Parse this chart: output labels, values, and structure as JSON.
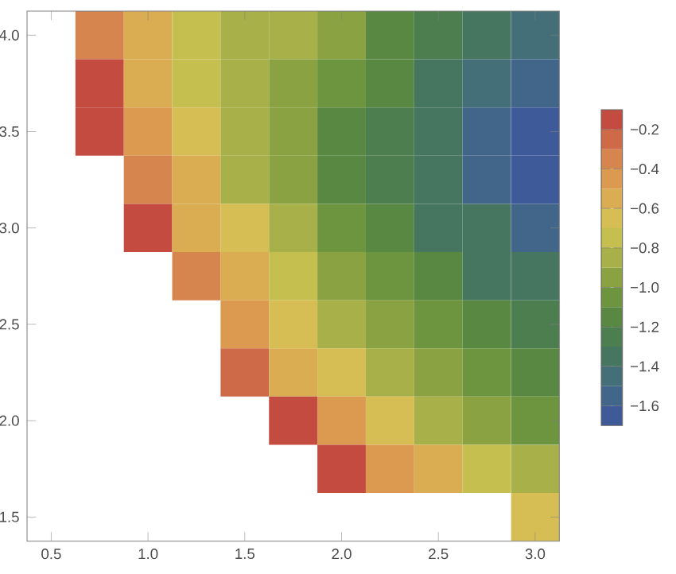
{
  "chart_data": {
    "type": "heatmap",
    "categories": [
      "0.5",
      null,
      "1.0",
      null,
      "1.5",
      null,
      "2.0",
      null,
      "2.5",
      null,
      "3.0"
    ],
    "y_categories": [
      "4.0",
      null,
      "3.5",
      null,
      "3.0",
      null,
      "2.5",
      null,
      "2.0",
      null,
      "1.5"
    ],
    "cells": [
      [
        null,
        -0.35,
        -0.6,
        -0.72,
        -0.8,
        -0.88,
        -0.95,
        -1.12,
        -1.25,
        -1.35,
        -1.45
      ],
      [
        null,
        -0.2,
        -0.55,
        -0.75,
        -0.85,
        -0.9,
        -1.05,
        -1.15,
        -1.3,
        -1.45,
        -1.55
      ],
      [
        null,
        -0.12,
        -0.45,
        -0.7,
        -0.85,
        -0.95,
        -1.1,
        -1.25,
        -1.4,
        -1.55,
        -1.65
      ],
      [
        null,
        null,
        -0.35,
        -0.6,
        -0.8,
        -0.95,
        -1.1,
        -1.25,
        -1.35,
        -1.5,
        -1.6
      ],
      [
        null,
        null,
        -0.15,
        -0.5,
        -0.7,
        -0.85,
        -1.0,
        -1.15,
        -1.3,
        -1.4,
        -1.5
      ],
      [
        null,
        null,
        null,
        -0.35,
        -0.6,
        -0.75,
        -0.9,
        -1.05,
        -1.15,
        -1.3,
        -1.4
      ],
      [
        null,
        null,
        null,
        null,
        -0.45,
        -0.65,
        -0.8,
        -0.95,
        -1.05,
        -1.15,
        -1.25
      ],
      [
        null,
        null,
        null,
        null,
        -0.25,
        -0.5,
        -0.7,
        -0.85,
        -0.95,
        -1.05,
        -1.15
      ],
      [
        null,
        null,
        null,
        null,
        null,
        -0.2,
        -0.45,
        -0.65,
        -0.8,
        -0.9,
        -1.0
      ],
      [
        null,
        null,
        null,
        null,
        null,
        null,
        -0.15,
        -0.4,
        -0.6,
        -0.75,
        -0.85
      ],
      [
        null,
        null,
        null,
        null,
        null,
        null,
        null,
        null,
        null,
        null,
        -0.65
      ]
    ],
    "clim": [
      -1.7,
      -0.1
    ],
    "cticks": [
      {
        "value": -0.2,
        "label": "−0.2"
      },
      {
        "value": -0.4,
        "label": "−0.4"
      },
      {
        "value": -0.6,
        "label": "−0.6"
      },
      {
        "value": -0.8,
        "label": "−0.8"
      },
      {
        "value": -1.0,
        "label": "−1.0"
      },
      {
        "value": -1.2,
        "label": "−1.2"
      },
      {
        "value": -1.4,
        "label": "−1.4"
      },
      {
        "value": -1.6,
        "label": "−1.6"
      }
    ]
  }
}
